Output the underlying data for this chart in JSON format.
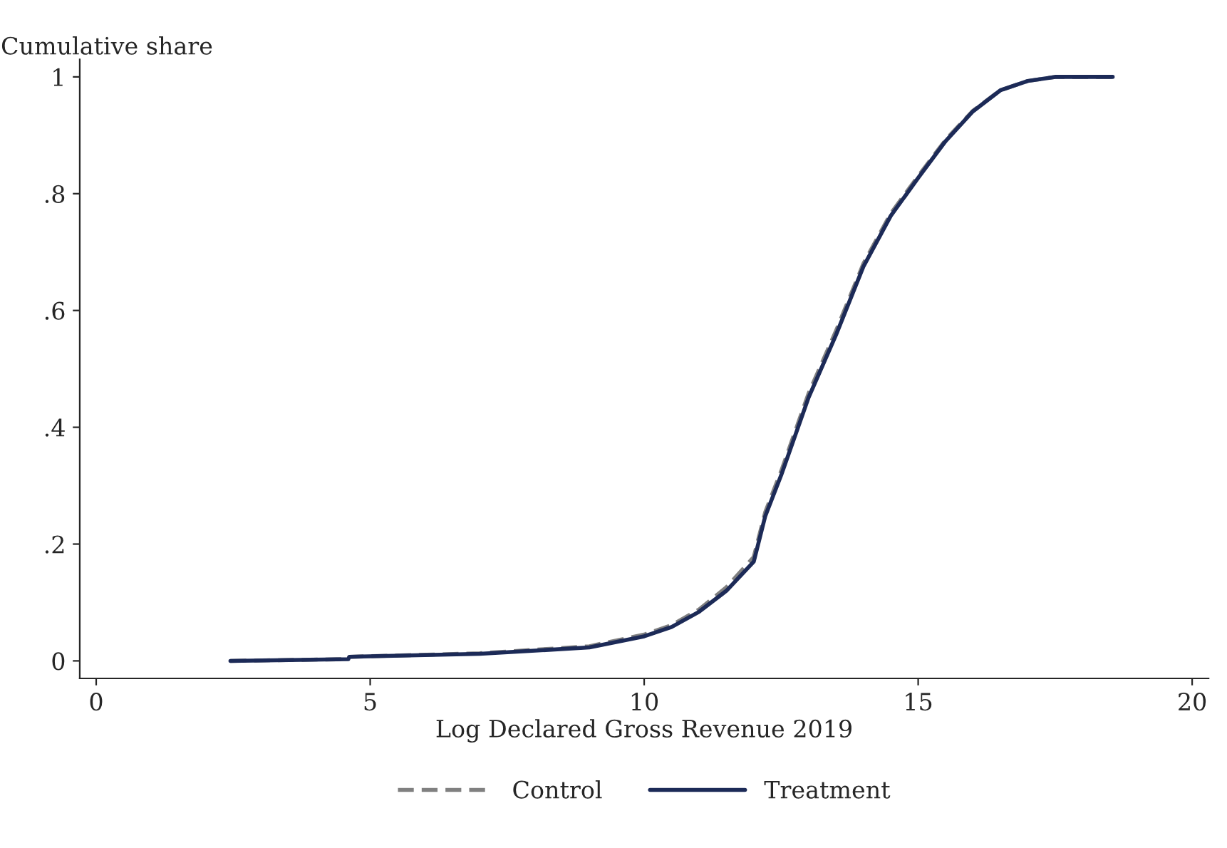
{
  "chart_data": {
    "type": "line",
    "xlabel": "Log Declared Gross Revenue 2019",
    "ylabel": "Cumulative share",
    "xlim": [
      -0.3,
      20.3
    ],
    "xticks": [
      0,
      5,
      10,
      15,
      20
    ],
    "ylim": [
      -0.03,
      1.03
    ],
    "yticks": [
      {
        "value": 0,
        "label": "0"
      },
      {
        "value": 0.2,
        "label": ".2"
      },
      {
        "value": 0.4,
        "label": ".4"
      },
      {
        "value": 0.6,
        "label": ".6"
      },
      {
        "value": 0.8,
        "label": ".8"
      },
      {
        "value": 1,
        "label": "1"
      }
    ],
    "grid": false,
    "legend": "bottom",
    "marker": "none",
    "series": [
      {
        "name": "Control",
        "color": "#808080",
        "line_style": "dashed",
        "x": [
          2.45,
          4.6,
          4.62,
          7,
          9,
          10,
          10.5,
          11,
          11.5,
          12,
          12.21,
          12.5,
          13,
          13.5,
          14,
          14.5,
          15,
          15.5,
          16,
          16.5,
          17,
          17.5,
          18.55
        ],
        "values": [
          0,
          0.003,
          0.007,
          0.013,
          0.025,
          0.045,
          0.061,
          0.088,
          0.126,
          0.178,
          0.255,
          0.325,
          0.458,
          0.565,
          0.68,
          0.766,
          0.83,
          0.892,
          0.942,
          0.977,
          0.993,
          1.0,
          1.0
        ]
      },
      {
        "name": "Treatment",
        "color": "#1c2a57",
        "line_style": "solid",
        "x": [
          2.45,
          4.6,
          4.62,
          7,
          9,
          10,
          10.5,
          11,
          11.5,
          12,
          12.21,
          12.5,
          13,
          13.5,
          14,
          14.5,
          15,
          15.5,
          16,
          16.5,
          17,
          17.5,
          18.55
        ],
        "values": [
          0,
          0.003,
          0.007,
          0.012,
          0.023,
          0.042,
          0.058,
          0.084,
          0.12,
          0.17,
          0.248,
          0.318,
          0.451,
          0.558,
          0.675,
          0.762,
          0.827,
          0.89,
          0.941,
          0.977,
          0.993,
          1.0,
          1.0
        ]
      }
    ]
  }
}
